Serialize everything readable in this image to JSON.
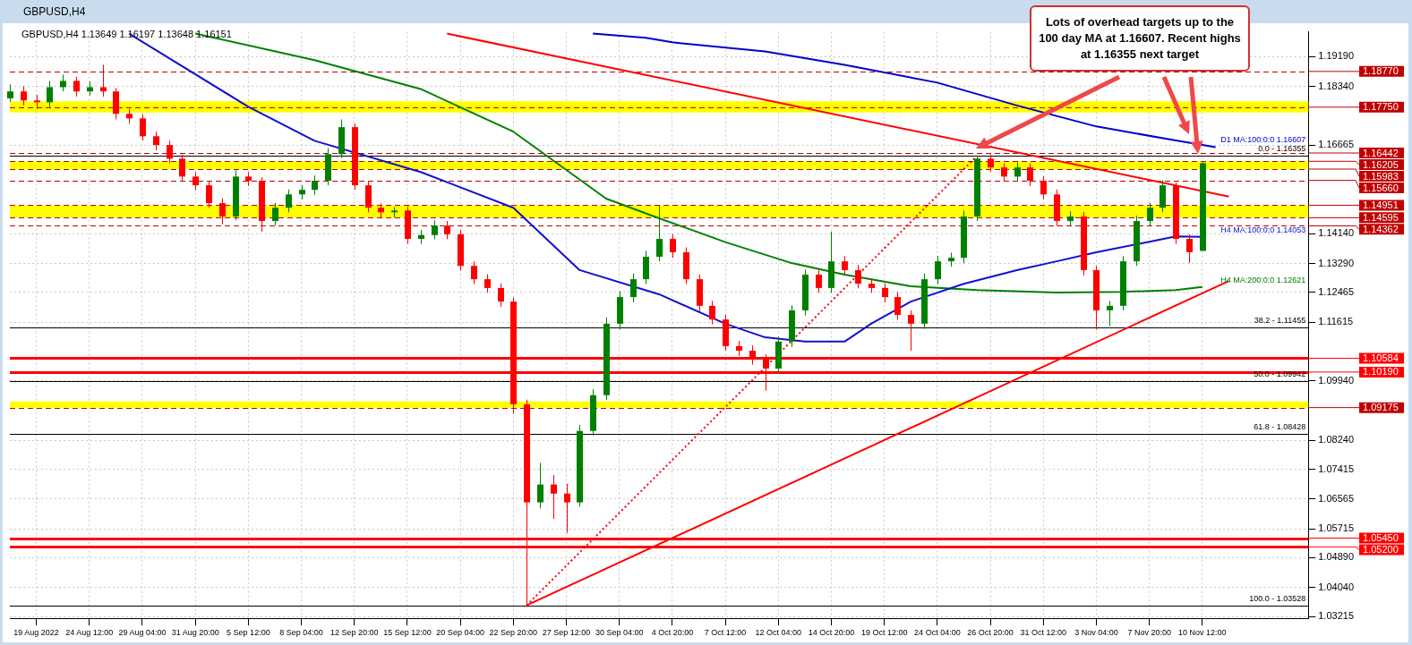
{
  "chart_data": {
    "type": "candlestick",
    "title": "GBPUSD,H4",
    "subtitle": "GBPUSD,H4  1.13649 1.16197 1.13648 1.16151",
    "categories": [
      null,
      null,
      "19 Aug 2022",
      null,
      null,
      null,
      "24 Aug 12:00",
      null,
      null,
      null,
      "29 Aug 04:00",
      null,
      null,
      null,
      "31 Aug 20:00",
      null,
      null,
      null,
      "5 Sep 12:00",
      null,
      null,
      null,
      "8 Sep 04:00",
      null,
      null,
      null,
      "12 Sep 20:00",
      null,
      null,
      null,
      "15 Sep 12:00",
      null,
      null,
      null,
      "20 Sep 04:00",
      null,
      null,
      null,
      "22 Sep 20:00",
      null,
      null,
      null,
      "27 Sep 12:00",
      null,
      null,
      null,
      "30 Sep 04:00",
      null,
      null,
      null,
      "4 Oct 20:00",
      null,
      null,
      null,
      "7 Oct 12:00",
      null,
      null,
      null,
      "12 Oct 04:00",
      null,
      null,
      null,
      "14 Oct 20:00",
      null,
      null,
      null,
      "19 Oct 12:00",
      null,
      null,
      null,
      "24 Oct 04:00",
      null,
      null,
      null,
      "26 Oct 20:00",
      null,
      null,
      null,
      "31 Oct 12:00",
      null,
      null,
      null,
      "3 Nov 04:00",
      null,
      null,
      null,
      "7 Nov 20:00",
      null,
      null,
      null,
      "10 Nov 12:00",
      null,
      null,
      null,
      null,
      null,
      null,
      null,
      null
    ],
    "ohlc": [
      [
        1.18,
        1.184,
        1.179,
        1.182
      ],
      [
        1.182,
        1.1835,
        1.178,
        1.1794
      ],
      [
        1.1794,
        1.181,
        1.177,
        1.1789
      ],
      [
        1.1789,
        1.185,
        1.1775,
        1.1832
      ],
      [
        1.1832,
        1.1868,
        1.182,
        1.185
      ],
      [
        1.185,
        1.1862,
        1.1805,
        1.182
      ],
      [
        1.182,
        1.1848,
        1.1808,
        1.1832
      ],
      [
        1.1832,
        1.1896,
        1.1805,
        1.182
      ],
      [
        1.182,
        1.183,
        1.174,
        1.1756
      ],
      [
        1.1756,
        1.177,
        1.1728,
        1.1743
      ],
      [
        1.1743,
        1.1755,
        1.168,
        1.1692
      ],
      [
        1.1692,
        1.1705,
        1.1652,
        1.1667
      ],
      [
        1.1667,
        1.168,
        1.1615,
        1.1628
      ],
      [
        1.1628,
        1.164,
        1.1562,
        1.1577
      ],
      [
        1.1577,
        1.159,
        1.1538,
        1.1552
      ],
      [
        1.1552,
        1.1565,
        1.1488,
        1.1501
      ],
      [
        1.1501,
        1.1515,
        1.144,
        1.1463
      ],
      [
        1.1463,
        1.1595,
        1.1452,
        1.1577
      ],
      [
        1.1577,
        1.159,
        1.155,
        1.1565
      ],
      [
        1.1565,
        1.1575,
        1.142,
        1.145
      ],
      [
        1.145,
        1.1502,
        1.1438,
        1.1488
      ],
      [
        1.1488,
        1.154,
        1.1475,
        1.1526
      ],
      [
        1.1526,
        1.1552,
        1.1512,
        1.1539
      ],
      [
        1.1539,
        1.158,
        1.1525,
        1.1565
      ],
      [
        1.1565,
        1.1658,
        1.1552,
        1.1641
      ],
      [
        1.1641,
        1.174,
        1.163,
        1.1718
      ],
      [
        1.1718,
        1.1728,
        1.154,
        1.1552
      ],
      [
        1.1552,
        1.1565,
        1.1475,
        1.1488
      ],
      [
        1.1488,
        1.15,
        1.146,
        1.1475
      ],
      [
        1.1475,
        1.149,
        1.146,
        1.148
      ],
      [
        1.148,
        1.1492,
        1.1385,
        1.1399
      ],
      [
        1.1399,
        1.1425,
        1.1385,
        1.141
      ],
      [
        1.141,
        1.1452,
        1.1398,
        1.1437
      ],
      [
        1.1437,
        1.145,
        1.1398,
        1.1412
      ],
      [
        1.1412,
        1.1425,
        1.1308,
        1.1322
      ],
      [
        1.1322,
        1.1335,
        1.127,
        1.1284
      ],
      [
        1.1284,
        1.1298,
        1.1245,
        1.1259
      ],
      [
        1.1259,
        1.1272,
        1.1205,
        1.122
      ],
      [
        1.122,
        1.1232,
        1.09,
        1.0927
      ],
      [
        1.0927,
        1.094,
        1.0353,
        1.0647
      ],
      [
        1.0647,
        1.076,
        1.063,
        1.0698
      ],
      [
        1.0698,
        1.0725,
        1.06,
        1.0672
      ],
      [
        1.0672,
        1.07,
        1.056,
        1.0647
      ],
      [
        1.0647,
        1.0868,
        1.0635,
        1.0851
      ],
      [
        1.0851,
        1.097,
        1.0838,
        1.0953
      ],
      [
        1.0953,
        1.1175,
        1.094,
        1.1157
      ],
      [
        1.1157,
        1.125,
        1.114,
        1.1233
      ],
      [
        1.1233,
        1.13,
        1.1218,
        1.1284
      ],
      [
        1.1284,
        1.1365,
        1.127,
        1.1348
      ],
      [
        1.1348,
        1.1495,
        1.1335,
        1.1399
      ],
      [
        1.1399,
        1.1412,
        1.1345,
        1.1361
      ],
      [
        1.1361,
        1.1375,
        1.127,
        1.1284
      ],
      [
        1.1284,
        1.1298,
        1.1192,
        1.1208
      ],
      [
        1.1208,
        1.1222,
        1.1155,
        1.1169
      ],
      [
        1.1169,
        1.1182,
        1.108,
        1.1093
      ],
      [
        1.1093,
        1.1108,
        1.1065,
        1.108
      ],
      [
        1.108,
        1.1095,
        1.104,
        1.1055
      ],
      [
        1.1055,
        1.107,
        1.0966,
        1.1029
      ],
      [
        1.1029,
        1.112,
        1.1015,
        1.1106
      ],
      [
        1.1106,
        1.121,
        1.109,
        1.1195
      ],
      [
        1.1195,
        1.1312,
        1.118,
        1.1297
      ],
      [
        1.1297,
        1.131,
        1.1245,
        1.1259
      ],
      [
        1.1259,
        1.142,
        1.1245,
        1.1335
      ],
      [
        1.1335,
        1.135,
        1.1295,
        1.131
      ],
      [
        1.131,
        1.1325,
        1.1258,
        1.1271
      ],
      [
        1.1271,
        1.1285,
        1.1245,
        1.1259
      ],
      [
        1.1259,
        1.1272,
        1.1218,
        1.1233
      ],
      [
        1.1233,
        1.1248,
        1.1168,
        1.1182
      ],
      [
        1.1182,
        1.1195,
        1.108,
        1.1157
      ],
      [
        1.1157,
        1.13,
        1.1142,
        1.1284
      ],
      [
        1.1284,
        1.135,
        1.127,
        1.1335
      ],
      [
        1.1335,
        1.136,
        1.132,
        1.1345
      ],
      [
        1.1345,
        1.148,
        1.133,
        1.1463
      ],
      [
        1.1463,
        1.1636,
        1.145,
        1.1628
      ],
      [
        1.1628,
        1.164,
        1.159,
        1.1603
      ],
      [
        1.1603,
        1.1615,
        1.1562,
        1.1577
      ],
      [
        1.1577,
        1.1618,
        1.1563,
        1.1603
      ],
      [
        1.1603,
        1.1615,
        1.155,
        1.1565
      ],
      [
        1.1565,
        1.1578,
        1.1512,
        1.1526
      ],
      [
        1.1526,
        1.154,
        1.1436,
        1.145
      ],
      [
        1.145,
        1.1478,
        1.1436,
        1.1463
      ],
      [
        1.1463,
        1.1476,
        1.1295,
        1.131
      ],
      [
        1.131,
        1.1322,
        1.114,
        1.1195
      ],
      [
        1.1195,
        1.1222,
        1.115,
        1.1208
      ],
      [
        1.1208,
        1.135,
        1.1195,
        1.1335
      ],
      [
        1.1335,
        1.1465,
        1.1322,
        1.145
      ],
      [
        1.145,
        1.1502,
        1.1436,
        1.1488
      ],
      [
        1.1488,
        1.1567,
        1.1475,
        1.1552
      ],
      [
        1.1552,
        1.156,
        1.1385,
        1.1399
      ],
      [
        1.1399,
        1.1412,
        1.133,
        1.1361
      ],
      [
        1.13649,
        1.16197,
        1.13648,
        1.16151
      ],
      null,
      null,
      null,
      null,
      null,
      null,
      null,
      null
    ],
    "series": [
      {
        "type": "line",
        "color": "#1010d0",
        "values": [
          null,
          null,
          null,
          null,
          null,
          null,
          null,
          null,
          null,
          1.1985,
          null,
          null,
          null,
          null,
          null,
          null,
          null,
          null,
          1.1776,
          null,
          null,
          null,
          null,
          1.1679,
          null,
          null,
          null,
          null,
          null,
          null,
          null,
          1.159,
          null,
          null,
          null,
          null,
          null,
          null,
          1.1488,
          null,
          null,
          null,
          null,
          1.131,
          null,
          null,
          null,
          null,
          null,
          1.1241,
          null,
          null,
          null,
          null,
          1.1157,
          null,
          null,
          1.1118,
          null,
          null,
          1.1106,
          null,
          null,
          1.1106,
          null,
          1.1157,
          null,
          null,
          1.122,
          null,
          null,
          null,
          1.1271,
          null,
          null,
          null,
          1.131,
          null,
          null,
          1.1335,
          null,
          null,
          1.1361,
          null,
          null,
          null,
          1.1391,
          null,
          1.1406,
          null,
          1.1405,
          null,
          null,
          null,
          null,
          null,
          null,
          null,
          null
        ]
      },
      {
        "type": "line",
        "color": "#008000",
        "values": [
          null,
          null,
          null,
          null,
          null,
          null,
          null,
          null,
          null,
          null,
          null,
          null,
          null,
          null,
          1.1985,
          null,
          null,
          null,
          null,
          null,
          null,
          null,
          null,
          1.1909,
          null,
          null,
          null,
          null,
          null,
          null,
          null,
          1.1827,
          null,
          null,
          null,
          null,
          null,
          null,
          1.1705,
          null,
          null,
          null,
          null,
          null,
          null,
          1.1514,
          null,
          null,
          null,
          1.1458,
          null,
          null,
          null,
          null,
          1.139,
          null,
          null,
          null,
          null,
          1.133,
          null,
          null,
          null,
          1.1297,
          null,
          null,
          null,
          null,
          1.1264,
          null,
          null,
          null,
          null,
          1.1253,
          null,
          null,
          null,
          null,
          null,
          1.1246,
          null,
          null,
          null,
          null,
          1.1248,
          null,
          null,
          null,
          1.1253,
          null,
          1.1262,
          null,
          null,
          null,
          null,
          null,
          null,
          null,
          null
        ]
      },
      {
        "type": "line",
        "color": "#0000cd",
        "values": [
          null,
          null,
          null,
          null,
          null,
          null,
          null,
          null,
          null,
          null,
          null,
          null,
          null,
          null,
          null,
          null,
          null,
          null,
          null,
          null,
          null,
          null,
          null,
          null,
          null,
          null,
          null,
          null,
          null,
          null,
          null,
          null,
          null,
          null,
          null,
          null,
          null,
          null,
          null,
          null,
          null,
          null,
          null,
          null,
          1.1985,
          null,
          null,
          null,
          1.1973,
          null,
          1.196,
          null,
          null,
          null,
          null,
          null,
          null,
          1.1934,
          null,
          null,
          null,
          null,
          null,
          1.1896,
          null,
          null,
          null,
          null,
          null,
          null,
          1.1845,
          null,
          null,
          null,
          null,
          null,
          1.178,
          null,
          null,
          null,
          null,
          null,
          1.172,
          null,
          null,
          null,
          null,
          null,
          1.168,
          null,
          null,
          1.1661,
          null,
          null,
          null,
          null,
          null,
          null,
          null
        ]
      },
      {
        "type": "line",
        "color": "#ff0000",
        "values": [
          null,
          null,
          null,
          null,
          null,
          null,
          null,
          null,
          null,
          null,
          null,
          null,
          null,
          null,
          null,
          null,
          null,
          null,
          null,
          null,
          null,
          null,
          null,
          null,
          null,
          null,
          null,
          null,
          null,
          null,
          null,
          null,
          null,
          1.1985,
          null,
          null,
          null,
          null,
          null,
          null,
          null,
          null,
          null,
          null,
          null,
          null,
          null,
          null,
          null,
          null,
          null,
          null,
          null,
          null,
          null,
          null,
          null,
          null,
          null,
          null,
          null,
          null,
          null,
          null,
          null,
          null,
          null,
          null,
          null,
          null,
          null,
          null,
          null,
          null,
          null,
          null,
          null,
          null,
          null,
          null,
          null,
          null,
          null,
          null,
          null,
          null,
          null,
          null,
          null,
          null,
          null,
          null,
          1.152,
          null,
          null,
          null,
          null,
          null,
          null
        ]
      },
      {
        "type": "line",
        "color": "#ff0000",
        "values": [
          null,
          null,
          null,
          null,
          null,
          null,
          null,
          null,
          null,
          null,
          null,
          null,
          null,
          null,
          null,
          null,
          null,
          null,
          null,
          null,
          null,
          null,
          null,
          null,
          null,
          null,
          null,
          null,
          null,
          null,
          null,
          null,
          null,
          null,
          null,
          null,
          null,
          null,
          null,
          1.0353,
          null,
          null,
          null,
          null,
          null,
          null,
          null,
          null,
          null,
          null,
          null,
          null,
          null,
          null,
          null,
          null,
          null,
          null,
          null,
          null,
          null,
          null,
          null,
          null,
          null,
          null,
          null,
          null,
          null,
          null,
          null,
          null,
          null,
          null,
          null,
          null,
          null,
          null,
          null,
          null,
          null,
          null,
          null,
          null,
          null,
          null,
          null,
          null,
          null,
          null,
          null,
          null,
          1.1279,
          null,
          null,
          null,
          null,
          null,
          null
        ]
      },
      {
        "type": "line",
        "color": "#ff0000",
        "line_style": "dotted",
        "values": [
          null,
          null,
          null,
          null,
          null,
          null,
          null,
          null,
          null,
          null,
          null,
          null,
          null,
          null,
          null,
          null,
          null,
          null,
          null,
          null,
          null,
          null,
          null,
          null,
          null,
          null,
          null,
          null,
          null,
          null,
          null,
          null,
          null,
          null,
          null,
          null,
          null,
          null,
          null,
          1.0353,
          null,
          null,
          null,
          null,
          null,
          null,
          null,
          null,
          null,
          null,
          null,
          null,
          null,
          null,
          null,
          null,
          null,
          null,
          null,
          null,
          null,
          null,
          null,
          null,
          null,
          null,
          null,
          null,
          null,
          null,
          null,
          null,
          null,
          1.1636,
          null,
          null,
          null,
          null,
          null,
          null,
          null,
          null,
          null,
          null,
          null,
          null,
          null,
          null,
          null,
          null,
          null,
          null,
          null,
          null,
          null,
          null,
          null,
          null,
          null
        ]
      }
    ],
    "ylim": [
      1.0316,
      1.199
    ],
    "yticks": [
      {
        "value": 1.1919,
        "label": "1.19190"
      },
      {
        "value": 1.1834,
        "label": "1.18340"
      },
      {
        "value": 1.16665,
        "label": "1.16665"
      },
      {
        "value": 1.1414,
        "label": "1.14140"
      },
      {
        "value": 1.1329,
        "label": "1.13290"
      },
      {
        "value": 1.12465,
        "label": "1.12465"
      },
      {
        "value": 1.11615,
        "label": "1.11615"
      },
      {
        "value": 1.0994,
        "label": "1.09940"
      },
      {
        "value": 1.0824,
        "label": "1.08240"
      },
      {
        "value": 1.07415,
        "label": "1.07415"
      },
      {
        "value": 1.06565,
        "label": "1.06565"
      },
      {
        "value": 1.05715,
        "label": "1.05715"
      },
      {
        "value": 1.0489,
        "label": "1.04890"
      },
      {
        "value": 1.0404,
        "label": "1.04040"
      },
      {
        "value": 1.03215,
        "label": "1.03215"
      }
    ],
    "grid": true,
    "bands": [
      {
        "axis": "y",
        "from": 1.176,
        "to": 1.1792,
        "color": "#ffff00"
      },
      {
        "axis": "y",
        "from": 1.15983,
        "to": 1.16205,
        "color": "#ffff00"
      },
      {
        "axis": "y",
        "from": 1.14595,
        "to": 1.14951,
        "color": "#ffff00"
      },
      {
        "axis": "y",
        "from": 1.09175,
        "to": 1.0935,
        "color": "#ffff00"
      }
    ],
    "ref_lines": [
      {
        "axis": "y",
        "value": 1.1877,
        "label": "1.18770",
        "color": "#c00000",
        "line_style": "dashed"
      },
      {
        "axis": "y",
        "value": 1.1775,
        "label": "1.17750",
        "color": "#c00000",
        "line_style": "dashed"
      },
      {
        "axis": "y",
        "value": 1.16442,
        "label": "1.16442",
        "color": "#c00000",
        "line_style": "dashed"
      },
      {
        "axis": "y",
        "value": 1.16205,
        "label": "1.16205",
        "color": "#c00000",
        "line_style": "dashed"
      },
      {
        "axis": "y",
        "value": 1.15983,
        "label": "1.15983",
        "color": "#c00000",
        "line_style": "dashed"
      },
      {
        "axis": "y",
        "value": 1.1566,
        "label": "1.15660",
        "color": "#c00000",
        "line_style": "dashed"
      },
      {
        "axis": "y",
        "value": 1.14951,
        "label": "1.14951",
        "color": "#c00000",
        "line_style": "dashed"
      },
      {
        "axis": "y",
        "value": 1.14595,
        "label": "1.14595",
        "color": "#c00000",
        "line_style": "dashed"
      },
      {
        "axis": "y",
        "value": 1.14362,
        "label": "1.14362",
        "color": "#c00000",
        "line_style": "dashed"
      },
      {
        "axis": "y",
        "value": 1.09175,
        "label": "1.09175",
        "color": "#c00000",
        "line_style": "dashed"
      },
      {
        "axis": "y",
        "value": 1.10584,
        "label": "1.10584",
        "color": "#ff0000",
        "line_style": "solid"
      },
      {
        "axis": "y",
        "value": 1.1019,
        "label": "1.10190",
        "color": "#ff0000",
        "line_style": "solid"
      },
      {
        "axis": "y",
        "value": 1.0545,
        "label": "1.05450",
        "color": "#ff0000",
        "line_style": "solid"
      },
      {
        "axis": "y",
        "value": 1.052,
        "label": "1.05200",
        "color": "#ff0000",
        "line_style": "solid"
      },
      {
        "axis": "y",
        "value": 1.16355,
        "color": "#000000",
        "line_style": "solid"
      },
      {
        "axis": "y",
        "value": 1.11455,
        "color": "#000000",
        "line_style": "solid"
      },
      {
        "axis": "y",
        "value": 1.09942,
        "color": "#000000",
        "line_style": "solid"
      },
      {
        "axis": "y",
        "value": 1.08428,
        "color": "#000000",
        "line_style": "solid"
      },
      {
        "axis": "y",
        "value": 1.03528,
        "color": "#000000",
        "line_style": "solid"
      }
    ],
    "annotations": [
      "Lots of overhead targets up to the 100 day MA at 1.16607.  Recent highs at 1.16355 next target",
      "D1 MA:100:0:0 1.16607",
      "H4 MA:100:0:0 1.14053",
      "H4 MA:200:0:0 1.12621",
      {
        "text": "0.0 - 1.16355",
        "y": 1.16355
      },
      {
        "text": "38.2 - 1.11455",
        "y": 1.11455
      },
      {
        "text": "50.0 - 1.09942",
        "y": 1.09942
      },
      {
        "text": "61.8 - 1.08428",
        "y": 1.08428
      },
      {
        "text": "100.0 - 1.03528",
        "y": 1.03528
      }
    ]
  }
}
